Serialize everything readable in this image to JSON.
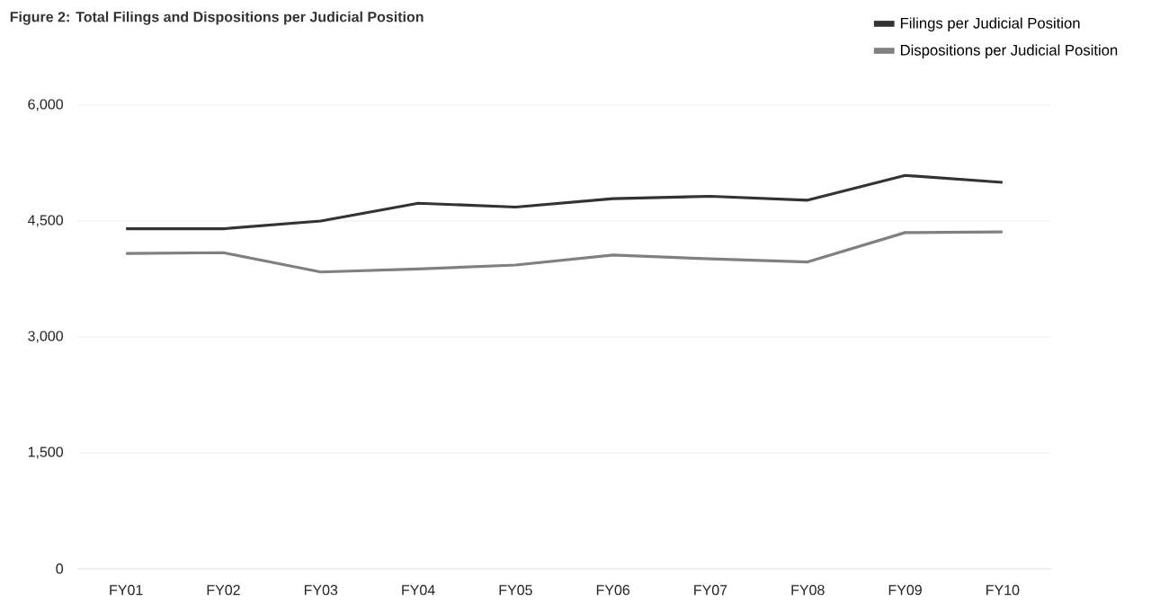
{
  "chart_data": {
    "type": "line",
    "title": "Figure 2: Total Filings and Dispositions per Judicial Position",
    "categories": [
      "FY01",
      "FY02",
      "FY03",
      "FY04",
      "FY05",
      "FY06",
      "FY07",
      "FY08",
      "FY09",
      "FY10"
    ],
    "series": [
      {
        "name": "Filings per Judicial Position",
        "color": "#333333",
        "values": [
          4400,
          4400,
          4500,
          4730,
          4680,
          4790,
          4820,
          4770,
          5090,
          5000
        ]
      },
      {
        "name": "Dispositions per Judicial Position",
        "color": "#808080",
        "values": [
          4080,
          4090,
          3840,
          3880,
          3930,
          4060,
          4010,
          3970,
          4350,
          4360
        ]
      }
    ],
    "ylim": [
      0,
      6000
    ],
    "yticks": [
      0,
      {
        "value": 1500,
        "label": "1,500"
      },
      {
        "value": 3000,
        "label": "3,000"
      },
      {
        "value": 4500,
        "label": "4,500"
      },
      {
        "value": 6000,
        "label": "6,000"
      }
    ],
    "grid": "y",
    "legend": "top right",
    "marker": "none",
    "line_style": "solid"
  }
}
